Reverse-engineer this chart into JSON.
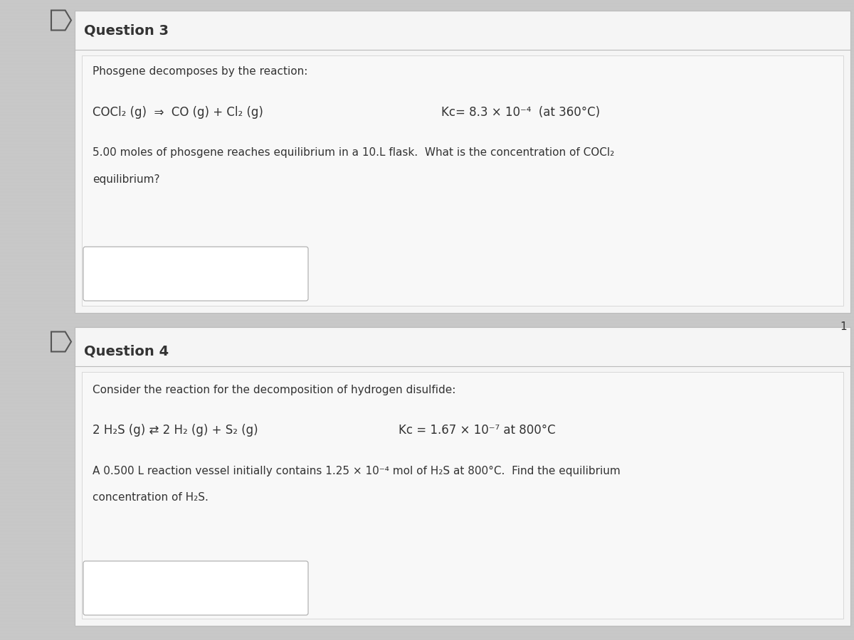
{
  "bg_color": "#c8c8c8",
  "card_bg": "#f5f5f5",
  "inner_bg": "#eeeeee",
  "header_bg": "#f5f5f5",
  "text_color": "#333333",
  "text_color2": "#444444",
  "border_color": "#bbbbbb",
  "answer_box_color": "#e8e8e8",
  "question3_header": "Question 3",
  "question4_header": "Question 4",
  "q3_intro": "Phosgene decomposes by the reaction:",
  "q3_reaction": "COCl₂ (g)  ⇒  CO (g) + Cl₂ (g)",
  "q3_kc": "Kc= 8.3 × 10⁻⁴  (at 360°C)",
  "q3_problem": "5.00 moles of phosgene reaches equilibrium in a 10.L flask.  What is the concentration of COCl₂",
  "q3_problem2": "equilibrium?",
  "q4_intro": "Consider the reaction for the decomposition of hydrogen disulfide:",
  "q4_reaction": "2 H₂S (g) ⇄ 2 H₂ (g) + S₂ (g)",
  "q4_kc": "Kc = 1.67 × 10⁻⁷ at 800°C",
  "q4_problem": "A 0.500 L reaction vessel initially contains 1.25 × 10⁻⁴ mol of H₂S at 800°C.  Find the equilibrium",
  "q4_problem2": "concentration of H₂S.",
  "page_number": "1"
}
